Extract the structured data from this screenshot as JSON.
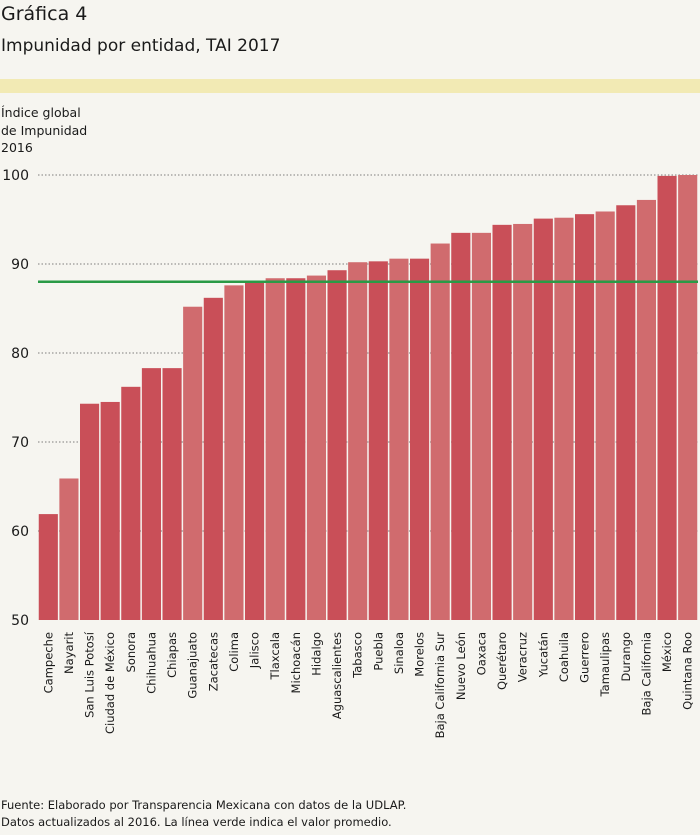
{
  "header": {
    "figure_label": "Gráfica 4",
    "title": "Impunidad por entidad, TAI 2017"
  },
  "chart_data": {
    "type": "bar",
    "ylabel": "Índice global\nde Impunidad\n2016",
    "ylim": [
      50,
      100
    ],
    "yticks": [
      50,
      60,
      70,
      80,
      90,
      100
    ],
    "grid": "dotted horizontal",
    "average_line": {
      "value": 88,
      "color": "#2a9a46"
    },
    "colors": {
      "dark": "#c94f58",
      "light": "#d06b6e"
    },
    "categories": [
      "Campeche",
      "Nayarit",
      "San Luis Potosí",
      "Ciudad de México",
      "Sonora",
      "Chihuahua",
      "Chiapas",
      "Guanajuato",
      "Zacatecas",
      "Colima",
      "Jalisco",
      "Tlaxcala",
      "Michoacán",
      "Hidalgo",
      "Aguascalientes",
      "Tabasco",
      "Puebla",
      "Sinaloa",
      "Morelos",
      "Baja California Sur",
      "Nuevo León",
      "Oaxaca",
      "Querétaro",
      "Veracruz",
      "Yucatán",
      "Coahuila",
      "Guerrero",
      "Tamaulipas",
      "Durango",
      "Baja California",
      "México",
      "Quintana Roo"
    ],
    "values": [
      61.9,
      65.9,
      74.3,
      74.5,
      76.2,
      78.3,
      78.3,
      85.2,
      86.2,
      87.6,
      88.0,
      88.4,
      88.4,
      88.7,
      89.3,
      90.2,
      90.3,
      90.6,
      90.6,
      92.3,
      93.5,
      93.5,
      94.4,
      94.5,
      95.1,
      95.2,
      95.6,
      95.9,
      96.6,
      97.2,
      99.9,
      100.0
    ],
    "shade": [
      "dark",
      "light",
      "dark",
      "dark",
      "dark",
      "dark",
      "dark",
      "light",
      "dark",
      "light",
      "dark",
      "light",
      "dark",
      "light",
      "dark",
      "light",
      "dark",
      "light",
      "dark",
      "light",
      "dark",
      "light",
      "dark",
      "light",
      "dark",
      "light",
      "dark",
      "light",
      "dark",
      "light",
      "dark",
      "light"
    ]
  },
  "footer": {
    "source": "Fuente: Elaborado por Transparencia Mexicana con datos de la UDLAP.\nDatos actualizados al 2016.  La línea verde indica el valor promedio."
  }
}
